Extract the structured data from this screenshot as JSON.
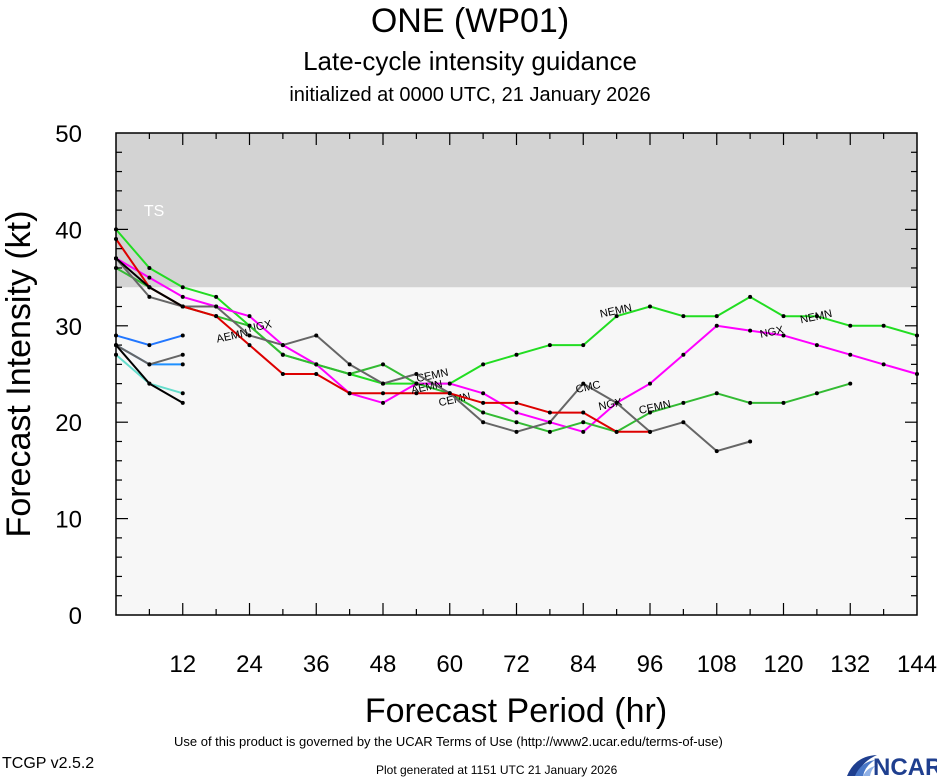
{
  "header": {
    "title": "ONE (WP01)",
    "subtitle": "Late-cycle intensity guidance",
    "initialized": "initialized at 0000 UTC, 21 January 2026"
  },
  "footer": {
    "terms": "Use of this product is governed by the UCAR Terms of Use (http://www2.ucar.edu/terms-of-use)",
    "version": "TCGP v2.5.2",
    "generated": "Plot generated at 1151 UTC   21 January 2026",
    "logo_text": "NCAR"
  },
  "chart_data": {
    "type": "line",
    "title": "Late-cycle intensity guidance",
    "xlabel": "Forecast Period (hr)",
    "ylabel": "Forecast Intensity (kt)",
    "xlim": [
      0,
      144
    ],
    "ylim": [
      0,
      50
    ],
    "xticks": [
      12,
      24,
      36,
      48,
      60,
      72,
      84,
      96,
      108,
      120,
      132,
      144
    ],
    "yticks": [
      0,
      10,
      20,
      30,
      40,
      50
    ],
    "grid": false,
    "background_color": "#f7f7f7",
    "band": {
      "label": "TS",
      "y_from": 34,
      "y_to": 50,
      "color": "#d3d3d3"
    },
    "series": [
      {
        "name": "NEMN",
        "color": "#22dd22",
        "x": [
          0,
          6,
          12,
          18,
          24,
          30,
          36,
          42,
          48,
          54,
          60,
          66,
          72,
          78,
          84,
          90,
          96,
          102,
          108,
          114,
          120,
          126,
          132,
          138,
          144
        ],
        "y": [
          40,
          36,
          34,
          33,
          30,
          27,
          26,
          25,
          24,
          24,
          24,
          26,
          27,
          28,
          28,
          31,
          32,
          31,
          31,
          33,
          31,
          31,
          30,
          30,
          29
        ],
        "labels": [
          {
            "text": "NEMN",
            "x": 90,
            "y": 31.2
          },
          {
            "text": "NEMN",
            "x": 126,
            "y": 30.6
          }
        ]
      },
      {
        "name": "NGX",
        "color": "#ff00ff",
        "x": [
          0,
          6,
          12,
          18,
          24,
          30,
          36,
          42,
          48,
          54,
          60,
          66,
          72,
          78,
          84,
          90,
          96,
          102,
          108,
          114,
          120,
          126,
          132,
          138,
          144
        ],
        "y": [
          37,
          35,
          33,
          32,
          31,
          28,
          26,
          23,
          22,
          24,
          24,
          23,
          21,
          20,
          19,
          22,
          24,
          27,
          30,
          29.5,
          29,
          28,
          27,
          26,
          25
        ],
        "labels": [
          {
            "text": "NGX",
            "x": 26,
            "y": 29.6
          },
          {
            "text": "NGX",
            "x": 89,
            "y": 21.5
          },
          {
            "text": "NGX",
            "x": 118,
            "y": 29
          }
        ]
      },
      {
        "name": "CEMN",
        "color": "#33bb33",
        "x": [
          0,
          6,
          12,
          18,
          24,
          30,
          36,
          42,
          48,
          54,
          60,
          66,
          72,
          78,
          84,
          90,
          96,
          102,
          108,
          114,
          120,
          126,
          132
        ],
        "y": [
          36,
          34,
          32,
          31,
          30,
          27,
          26,
          25,
          26,
          24,
          23,
          21,
          20,
          19,
          20,
          19,
          21,
          22,
          23,
          22,
          22,
          23,
          24
        ],
        "labels": [
          {
            "text": "CEMN",
            "x": 57,
            "y": 24.5
          },
          {
            "text": "CEMN",
            "x": 61,
            "y": 22
          },
          {
            "text": "CEMN",
            "x": 97,
            "y": 21.2
          }
        ]
      },
      {
        "name": "CMC",
        "color": "#666666",
        "x": [
          0,
          6,
          12,
          18,
          24,
          30,
          36,
          42,
          48,
          54,
          60,
          66,
          72,
          78,
          84,
          90,
          96,
          102,
          108,
          114
        ],
        "y": [
          37,
          33,
          32,
          32,
          29,
          28,
          29,
          26,
          24,
          25,
          23,
          20,
          19,
          20,
          24,
          22,
          19,
          20,
          17,
          18
        ],
        "labels": [
          {
            "text": "CMC",
            "x": 85,
            "y": 23.3
          }
        ]
      },
      {
        "name": "AEMN",
        "color": "#dd0000",
        "x": [
          0,
          6,
          12,
          18,
          24,
          30,
          36,
          42,
          48,
          54,
          60,
          66,
          72,
          78,
          84,
          90,
          96
        ],
        "y": [
          39,
          34,
          32,
          31,
          28,
          25,
          25,
          23,
          23,
          23,
          23,
          22,
          22,
          21,
          21,
          19,
          19
        ],
        "labels": [
          {
            "text": "AEMN",
            "x": 21,
            "y": 28.6
          },
          {
            "text": "AEMN",
            "x": 56,
            "y": 23.3
          }
        ]
      },
      {
        "name": "",
        "color": "#000000",
        "x": [
          0,
          6,
          12
        ],
        "y": [
          37,
          34,
          32
        ],
        "labels": []
      },
      {
        "name": "",
        "color": "#2277ff",
        "x": [
          0,
          6,
          12
        ],
        "y": [
          29,
          28,
          29
        ],
        "labels": []
      },
      {
        "name": "",
        "color": "#1e90ff",
        "x": [
          0,
          6,
          12
        ],
        "y": [
          28,
          26,
          26
        ],
        "labels": []
      },
      {
        "name": "",
        "color": "#666666",
        "x": [
          0,
          6,
          12
        ],
        "y": [
          28,
          26,
          27
        ],
        "labels": []
      },
      {
        "name": "",
        "color": "#66ddcc",
        "x": [
          0,
          6,
          12
        ],
        "y": [
          27,
          24,
          23
        ],
        "labels": []
      },
      {
        "name": "",
        "color": "#000000",
        "x": [
          0,
          6,
          12
        ],
        "y": [
          28,
          24,
          22
        ],
        "labels": []
      }
    ]
  }
}
